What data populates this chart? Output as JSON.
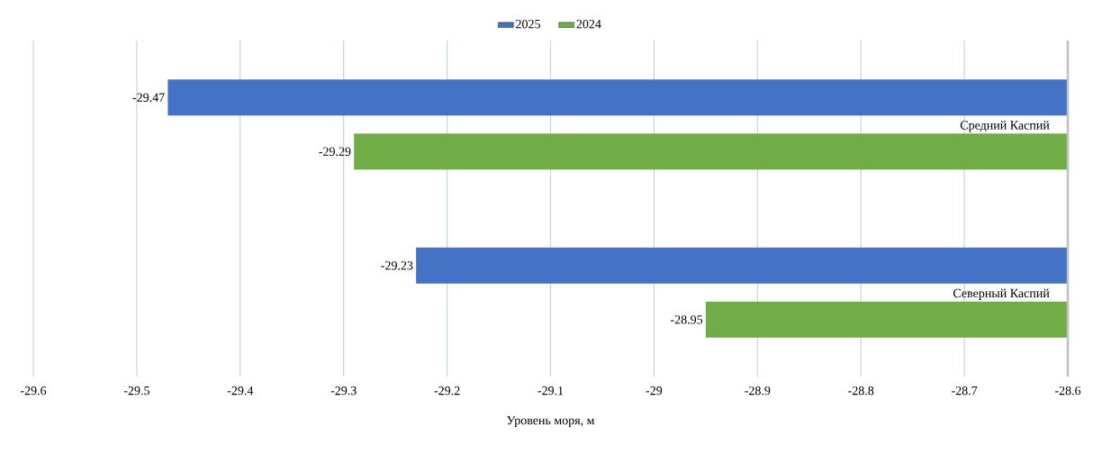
{
  "chart_data": {
    "type": "bar",
    "orientation": "horizontal",
    "xlabel": "Уровень моря, м",
    "categories": [
      "Средний Каспий",
      "Северный Каспий"
    ],
    "series": [
      {
        "name": "2025",
        "color": "#4472c4",
        "values": [
          -29.47,
          -29.23
        ]
      },
      {
        "name": "2024",
        "color": "#70ad47",
        "values": [
          -29.29,
          -28.95
        ]
      }
    ],
    "xlim": [
      -29.6,
      -28.6
    ],
    "xticks": [
      -29.6,
      -29.5,
      -29.4,
      -29.3,
      -29.2,
      -29.1,
      -29,
      -28.9,
      -28.8,
      -28.7,
      -28.6
    ],
    "grid": "x",
    "legend": "top",
    "data_labels": true
  }
}
